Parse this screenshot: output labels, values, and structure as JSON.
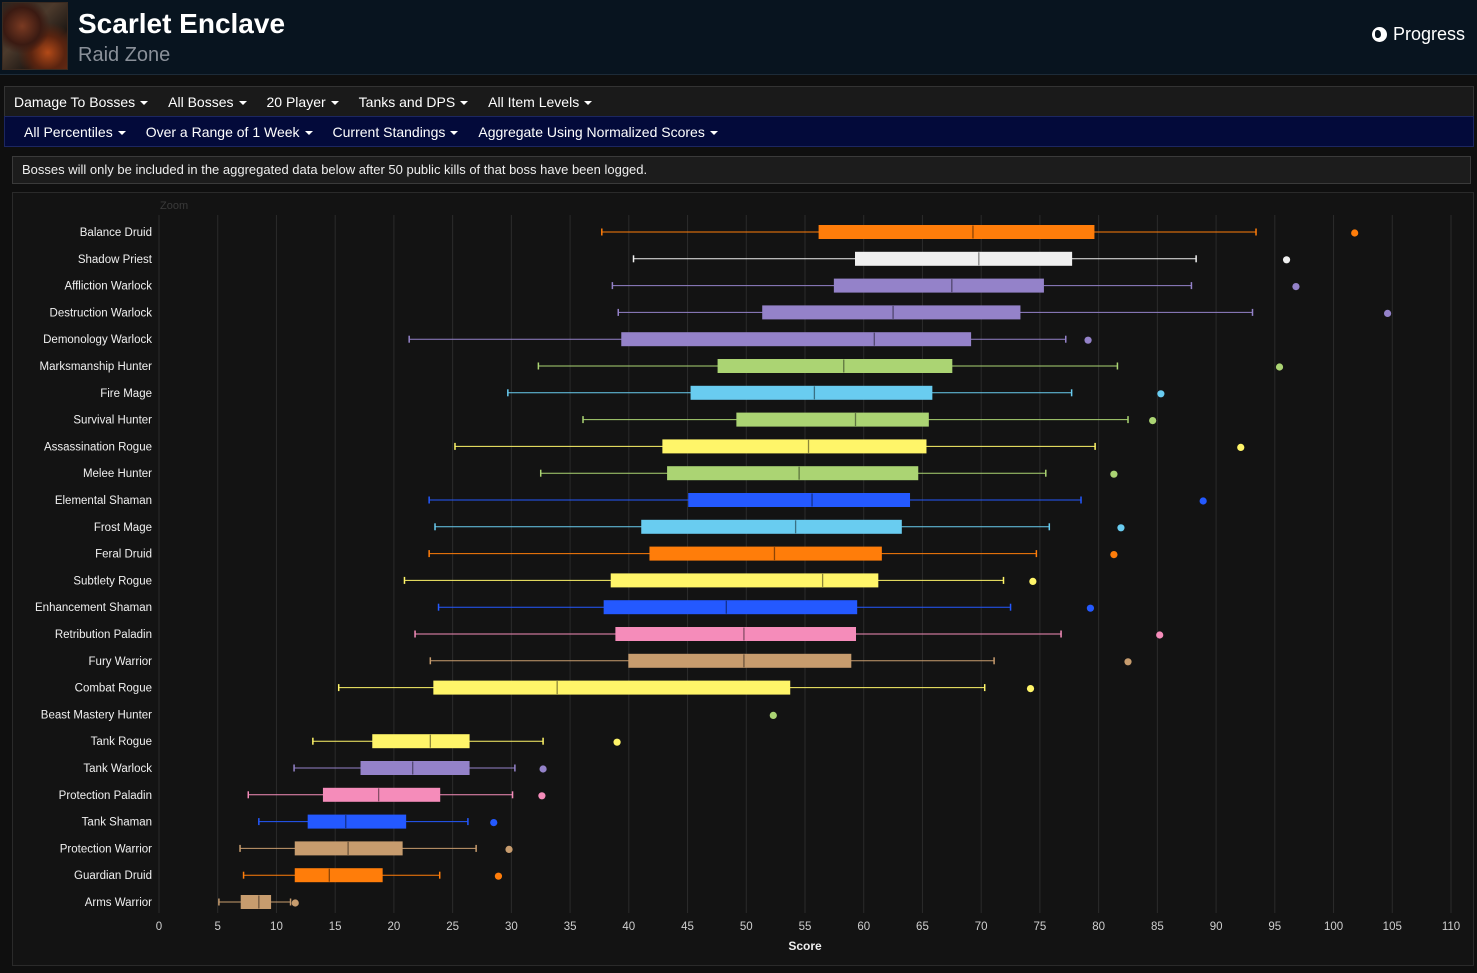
{
  "header": {
    "title": "Scarlet Enclave",
    "subtitle": "Raid Zone",
    "progress_label": "Progress"
  },
  "filters_row1": [
    "Damage To Bosses",
    "All Bosses",
    "20 Player",
    "Tanks and DPS",
    "All Item Levels"
  ],
  "filters_row2": [
    "All Percentiles",
    "Over a Range of 1 Week",
    "Current Standings",
    "Aggregate Using Normalized Scores"
  ],
  "notice": "Bosses will only be included in the aggregated data below after 50 public kills of that boss have been logged.",
  "chart_data": {
    "type": "boxplot",
    "orientation": "horizontal",
    "zoom_label": "Zoom",
    "xlabel": "Score",
    "xlim": [
      0,
      110
    ],
    "xticks": [
      0,
      5,
      10,
      15,
      20,
      25,
      30,
      35,
      40,
      45,
      50,
      55,
      60,
      65,
      70,
      75,
      80,
      85,
      90,
      95,
      100,
      105,
      110
    ],
    "grid": "vertical",
    "series": [
      {
        "name": "Balance Druid",
        "color": "#FF7D0A",
        "min": 37.7,
        "q1": 56.2,
        "median": 69.3,
        "q3": 79.6,
        "max": 93.4,
        "outlier": 101.8
      },
      {
        "name": "Shadow Priest",
        "color": "#F0F0F0",
        "min": 40.4,
        "q1": 59.3,
        "median": 69.8,
        "q3": 77.7,
        "max": 88.3,
        "outlier": 96.0
      },
      {
        "name": "Affliction Warlock",
        "color": "#9482C9",
        "min": 38.6,
        "q1": 57.5,
        "median": 67.5,
        "q3": 75.3,
        "max": 87.9,
        "outlier": 96.8
      },
      {
        "name": "Destruction Warlock",
        "color": "#9482C9",
        "min": 39.1,
        "q1": 51.4,
        "median": 62.5,
        "q3": 73.3,
        "max": 93.1,
        "outlier": 104.6
      },
      {
        "name": "Demonology Warlock",
        "color": "#9482C9",
        "min": 21.3,
        "q1": 39.4,
        "median": 60.9,
        "q3": 69.1,
        "max": 77.2,
        "outlier": 79.1
      },
      {
        "name": "Marksmanship Hunter",
        "color": "#ABD473",
        "min": 32.3,
        "q1": 47.6,
        "median": 58.3,
        "q3": 67.5,
        "max": 81.6,
        "outlier": 95.4
      },
      {
        "name": "Fire Mage",
        "color": "#69CCF0",
        "min": 29.7,
        "q1": 45.3,
        "median": 55.8,
        "q3": 65.8,
        "max": 77.7,
        "outlier": 85.3
      },
      {
        "name": "Survival Hunter",
        "color": "#ABD473",
        "min": 36.1,
        "q1": 49.2,
        "median": 59.3,
        "q3": 65.5,
        "max": 82.5,
        "outlier": 84.6
      },
      {
        "name": "Assassination Rogue",
        "color": "#FFF569",
        "min": 25.2,
        "q1": 42.9,
        "median": 55.3,
        "q3": 65.3,
        "max": 79.7,
        "outlier": 92.1
      },
      {
        "name": "Melee Hunter",
        "color": "#ABD473",
        "min": 32.5,
        "q1": 43.3,
        "median": 54.5,
        "q3": 64.6,
        "max": 75.5,
        "outlier": 81.3
      },
      {
        "name": "Elemental Shaman",
        "color": "#2459FF",
        "min": 23.0,
        "q1": 45.1,
        "median": 55.6,
        "q3": 63.9,
        "max": 78.5,
        "outlier": 88.9
      },
      {
        "name": "Frost Mage",
        "color": "#69CCF0",
        "min": 23.5,
        "q1": 41.1,
        "median": 54.2,
        "q3": 63.2,
        "max": 75.8,
        "outlier": 81.9
      },
      {
        "name": "Feral Druid",
        "color": "#FF7D0A",
        "min": 23.0,
        "q1": 41.8,
        "median": 52.4,
        "q3": 61.5,
        "max": 74.7,
        "outlier": 81.3
      },
      {
        "name": "Subtlety Rogue",
        "color": "#FFF569",
        "min": 20.9,
        "q1": 38.5,
        "median": 56.5,
        "q3": 61.2,
        "max": 71.9,
        "outlier": 74.4
      },
      {
        "name": "Enhancement Shaman",
        "color": "#2459FF",
        "min": 23.8,
        "q1": 37.9,
        "median": 48.3,
        "q3": 59.4,
        "max": 72.5,
        "outlier": 79.3
      },
      {
        "name": "Retribution Paladin",
        "color": "#F58CBA",
        "min": 21.8,
        "q1": 38.9,
        "median": 49.8,
        "q3": 59.3,
        "max": 76.8,
        "outlier": 85.2
      },
      {
        "name": "Fury Warrior",
        "color": "#C79C6E",
        "min": 23.1,
        "q1": 40.0,
        "median": 49.8,
        "q3": 58.9,
        "max": 71.1,
        "outlier": 82.5
      },
      {
        "name": "Combat Rogue",
        "color": "#FFF569",
        "min": 15.3,
        "q1": 23.4,
        "median": 33.9,
        "q3": 53.7,
        "max": 70.3,
        "outlier": 74.2
      },
      {
        "name": "Beast Mastery Hunter",
        "color": "#ABD473",
        "min": null,
        "q1": null,
        "median": null,
        "q3": null,
        "max": null,
        "outlier": 52.3
      },
      {
        "name": "Tank Rogue",
        "color": "#FFF569",
        "min": 13.1,
        "q1": 18.2,
        "median": 23.1,
        "q3": 26.4,
        "max": 32.7,
        "outlier": 39.0
      },
      {
        "name": "Tank Warlock",
        "color": "#9482C9",
        "min": 11.5,
        "q1": 17.2,
        "median": 21.6,
        "q3": 26.4,
        "max": 30.3,
        "outlier": 32.7
      },
      {
        "name": "Protection Paladin",
        "color": "#F58CBA",
        "min": 7.6,
        "q1": 14.0,
        "median": 18.7,
        "q3": 23.9,
        "max": 30.1,
        "outlier": 32.6
      },
      {
        "name": "Tank Shaman",
        "color": "#2459FF",
        "min": 8.5,
        "q1": 12.7,
        "median": 15.9,
        "q3": 21.0,
        "max": 26.3,
        "outlier": 28.5
      },
      {
        "name": "Protection Warrior",
        "color": "#C79C6E",
        "min": 6.9,
        "q1": 11.6,
        "median": 16.1,
        "q3": 20.7,
        "max": 27.0,
        "outlier": 29.8
      },
      {
        "name": "Guardian Druid",
        "color": "#FF7D0A",
        "min": 7.2,
        "q1": 11.6,
        "median": 14.5,
        "q3": 19.0,
        "max": 23.9,
        "outlier": 28.9
      },
      {
        "name": "Arms Warrior",
        "color": "#C79C6E",
        "min": 5.1,
        "q1": 7.0,
        "median": 8.5,
        "q3": 9.5,
        "max": 11.2,
        "outlier": 11.6
      }
    ]
  }
}
